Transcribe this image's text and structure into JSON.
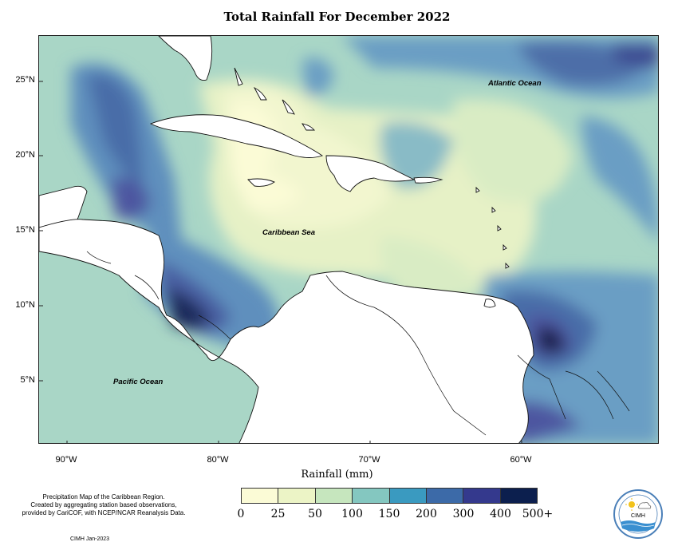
{
  "title": "Total Rainfall For December 2022",
  "map": {
    "lat_labels": [
      "25°N",
      "20°N",
      "15°N",
      "10°N",
      "5°N"
    ],
    "lon_labels": [
      "90°W",
      "80°W",
      "70°W",
      "60°W"
    ],
    "places": {
      "atlantic": "Atlantic Ocean",
      "caribbean": "Caribbean Sea",
      "pacific": "Pacific Ocean"
    }
  },
  "xlabel": "Rainfall (mm)",
  "legend": {
    "colors": [
      "#fbfbd6",
      "#ecf4c6",
      "#c6e6be",
      "#84c7c0",
      "#3a9ac0",
      "#3c6aa8",
      "#34398d",
      "#0c1f4e"
    ],
    "ticks": [
      "0",
      "25",
      "50",
      "100",
      "150",
      "200",
      "300",
      "400",
      "500+"
    ]
  },
  "description": [
    "Precipitation Map of the Caribbean Region.",
    "Created by aggregating station based observations,",
    "provided by CariCOF, with NCEP/NCAR Reanalysis Data."
  ],
  "credit": "CIMH Jan-2023",
  "logo_text": "CIMH"
}
